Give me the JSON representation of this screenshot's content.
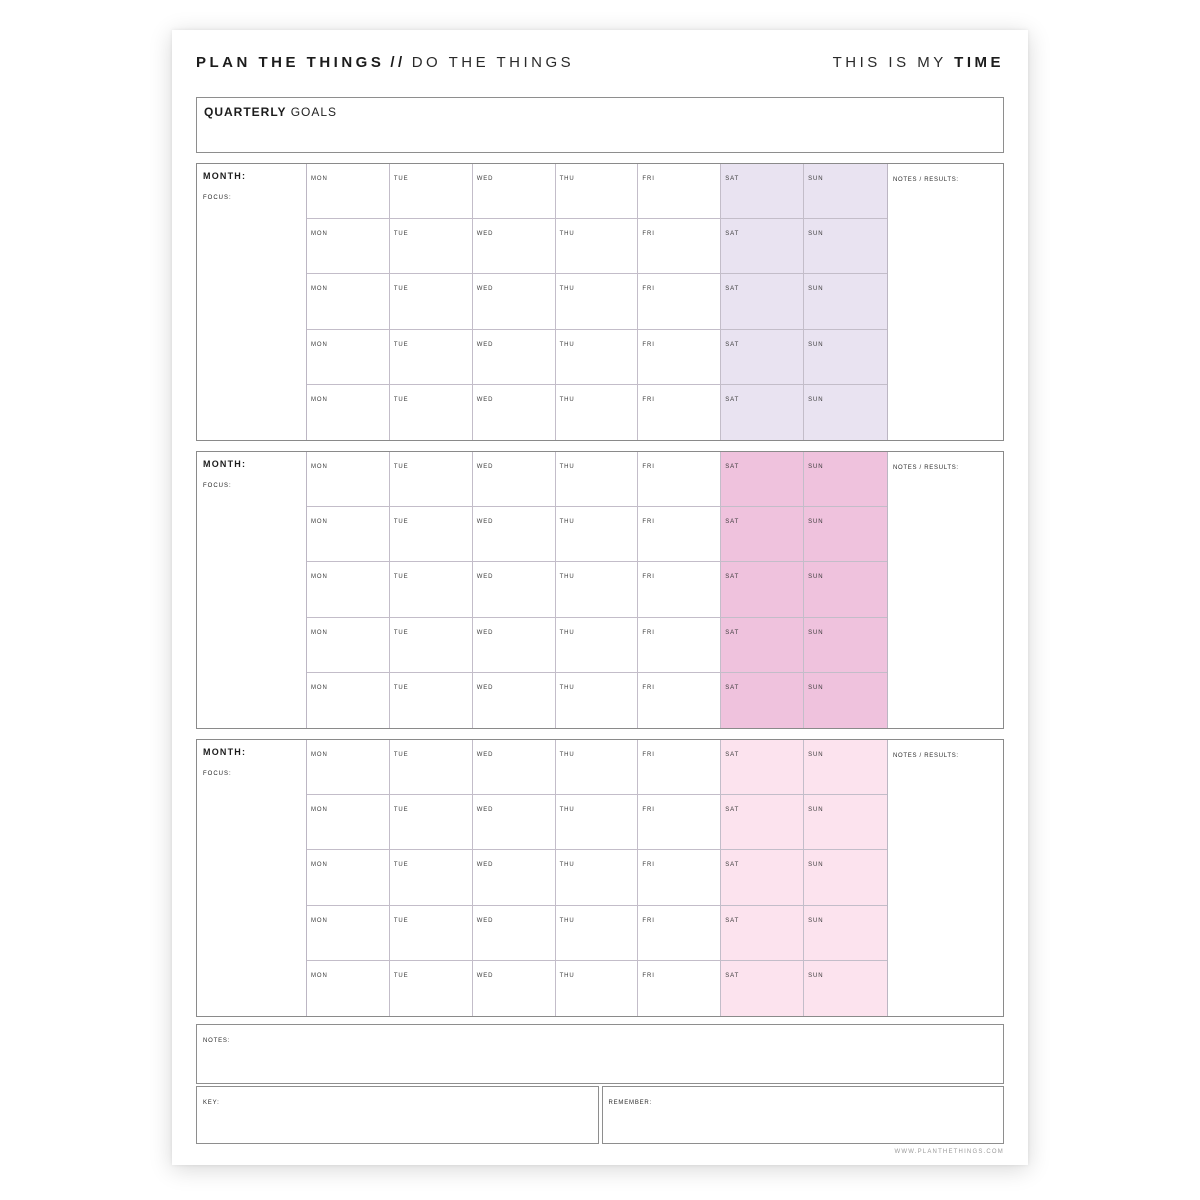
{
  "header": {
    "title_left_bold": "PLAN THE THINGS",
    "title_separator": "//",
    "title_left_regular": "DO THE THINGS",
    "title_right_regular": "THIS IS MY ",
    "title_right_bold": "TIME"
  },
  "quarterly": {
    "label_bold": "QUARTERLY ",
    "label_regular": "GOALS"
  },
  "days": [
    "MON",
    "TUE",
    "WED",
    "THU",
    "FRI",
    "SAT",
    "SUN"
  ],
  "months": [
    {
      "month_label": "MONTH:",
      "focus_label": "FOCUS:",
      "notes_label": "NOTES / RESULTS:",
      "weekend_color": "#e9e3f1"
    },
    {
      "month_label": "MONTH:",
      "focus_label": "FOCUS:",
      "notes_label": "NOTES / RESULTS:",
      "weekend_color": "#efc2dd"
    },
    {
      "month_label": "MONTH:",
      "focus_label": "FOCUS:",
      "notes_label": "NOTES / RESULTS:",
      "weekend_color": "#fce3ee"
    }
  ],
  "footer": {
    "notes_label": "NOTES:",
    "key_label": "KEY:",
    "remember_label": "REMEMBER:",
    "website": "WWW.PLANTHETHINGS.COM"
  },
  "colors": {
    "weekend_month_1": "#e9e3f1",
    "weekend_month_2": "#efc2dd",
    "weekend_month_3": "#fce3ee",
    "border_outer": "#8a8a8a",
    "border_inner": "#c3bdc9"
  }
}
